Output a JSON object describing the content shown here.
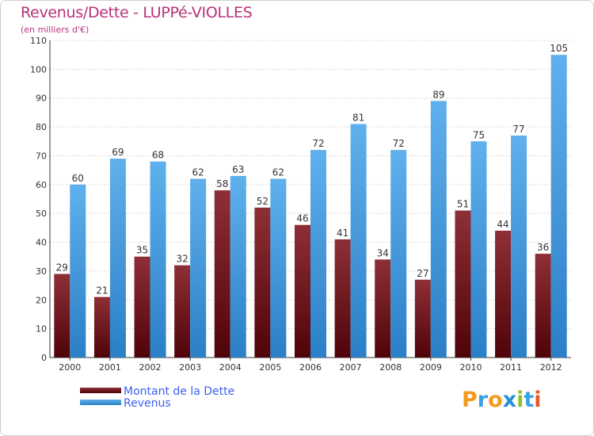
{
  "title": "Revenus/Dette - LUPPé-VIOLLES",
  "subtitle": "(en milliers d'€)",
  "colors": {
    "dette": "#6e1018",
    "revenus": "#3e96dc",
    "title": "#b8327a",
    "legend_text": "#3d5ff2"
  },
  "logo": {
    "text": "Proxiti",
    "letter_colors": [
      "#f29a1f",
      "#3aa2e0",
      "#f29a1f",
      "#2a8fd6",
      "#93bf2a",
      "#3aa2e0",
      "#e65a2a"
    ]
  },
  "chart_data": {
    "type": "bar",
    "categories": [
      "2000",
      "2001",
      "2002",
      "2003",
      "2004",
      "2005",
      "2006",
      "2007",
      "2008",
      "2009",
      "2010",
      "2011",
      "2012"
    ],
    "series": [
      {
        "name": "Montant de la Dette",
        "values": [
          29,
          21,
          35,
          32,
          58,
          52,
          46,
          41,
          34,
          27,
          51,
          44,
          36
        ]
      },
      {
        "name": "Revenus",
        "values": [
          60,
          69,
          68,
          62,
          63,
          62,
          72,
          81,
          72,
          89,
          75,
          77,
          105
        ]
      }
    ],
    "ylim": [
      0,
      110
    ],
    "yticks": [
      0,
      10,
      20,
      30,
      40,
      50,
      60,
      70,
      80,
      90,
      100,
      110
    ],
    "grid": true,
    "legend": "bottom-left"
  }
}
